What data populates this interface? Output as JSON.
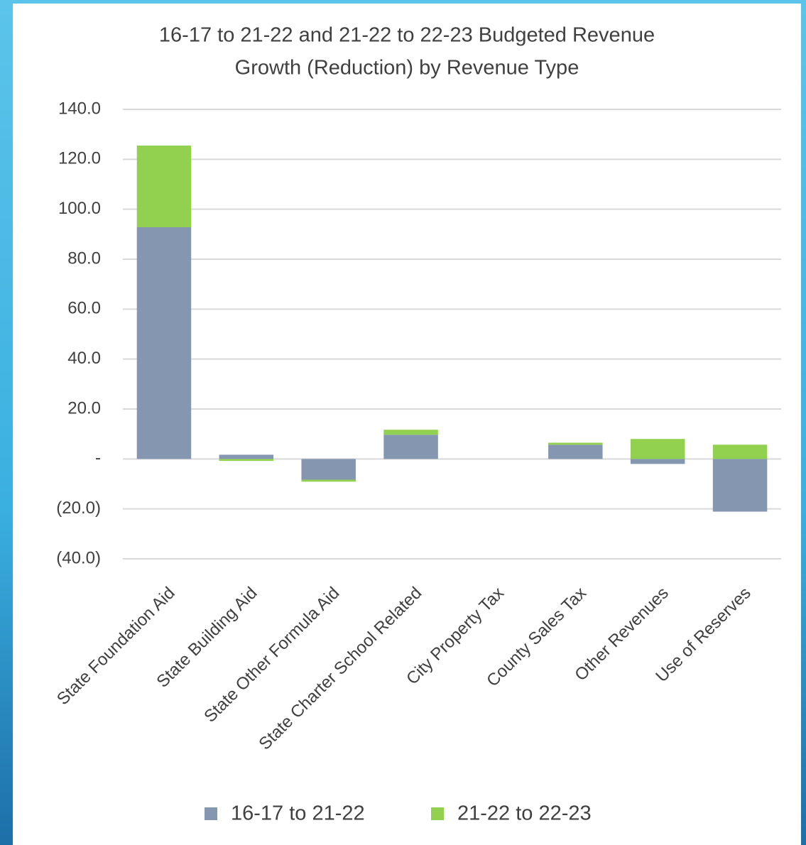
{
  "chart_data": {
    "type": "stacked-bar",
    "title": [
      "16-17 to 21-22 and 21-22 to 22-23 Budgeted Revenue",
      "Growth (Reduction) by Revenue Type"
    ],
    "categories": [
      "State Foundation Aid",
      "State Building Aid",
      "State Other Formula Aid",
      "State Charter School Related",
      "City Property Tax",
      "County Sales Tax",
      "Other Revenues",
      "Use of Reserves"
    ],
    "series": [
      {
        "name": "16-17 to 21-22",
        "color": "#8496b0",
        "values": [
          92.8,
          1.7,
          -8.3,
          9.7,
          0,
          5.7,
          -2.0,
          -21.1
        ]
      },
      {
        "name": "21-22 to 22-23",
        "color": "#92d050",
        "values": [
          32.7,
          -0.8,
          -0.8,
          2.0,
          0,
          0.8,
          8.0,
          5.7
        ]
      }
    ],
    "ylim": [
      -40,
      140
    ],
    "yticks": [
      {
        "value": -40,
        "label": "(40.0)"
      },
      {
        "value": -20,
        "label": "(20.0)"
      },
      {
        "value": 0,
        "label": "-"
      },
      {
        "value": 20,
        "label": "20.0"
      },
      {
        "value": 40,
        "label": "40.0"
      },
      {
        "value": 60,
        "label": "60.0"
      },
      {
        "value": 80,
        "label": "80.0"
      },
      {
        "value": 100,
        "label": "100.0"
      },
      {
        "value": 120,
        "label": "120.0"
      },
      {
        "value": 140,
        "label": "140.0"
      }
    ],
    "grid": true,
    "legend": "bottom"
  }
}
